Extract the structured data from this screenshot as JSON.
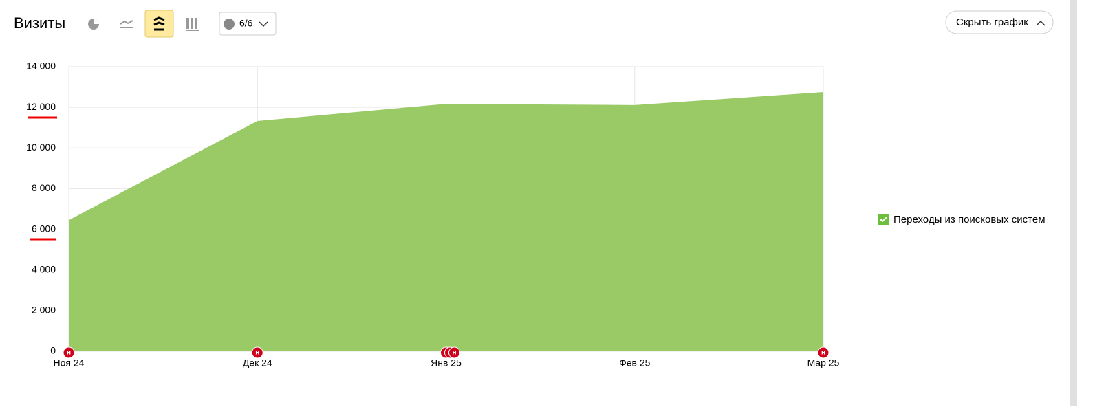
{
  "header": {
    "title": "Визиты",
    "comments_button": "6/6",
    "hide_chart_button": "Скрыть график"
  },
  "chart_data": {
    "type": "area",
    "categories": [
      "Ноя 24",
      "Дек 24",
      "Янв 25",
      "Фев 25",
      "Мар 25"
    ],
    "series": [
      {
        "name": "Переходы из поисковых систем",
        "color": "#99ca66",
        "values": [
          6450,
          11330,
          12170,
          12110,
          12750
        ]
      }
    ],
    "ylim": [
      0,
      14000
    ],
    "yticks": [
      0,
      {
        "value": 2000,
        "label": "2 000"
      },
      {
        "value": 4000,
        "label": "4 000"
      },
      {
        "value": 6000,
        "label": "6 000"
      },
      {
        "value": 8000,
        "label": "8 000"
      },
      {
        "value": 10000,
        "label": "10 000"
      },
      {
        "value": 12000,
        "label": "12 000"
      },
      {
        "value": 14000,
        "label": "14 000"
      }
    ],
    "grid": true,
    "legend": "right",
    "annotations": [
      {
        "x": "Ноя 24",
        "label": "н"
      },
      {
        "x": "Дек 24",
        "label": "н"
      },
      {
        "x": "Янв 25",
        "label": "н"
      },
      {
        "x": "Янв 25",
        "label": "н"
      },
      {
        "x": "Янв 25",
        "label": "н"
      },
      {
        "x": "Мар 25",
        "label": "н"
      }
    ]
  }
}
